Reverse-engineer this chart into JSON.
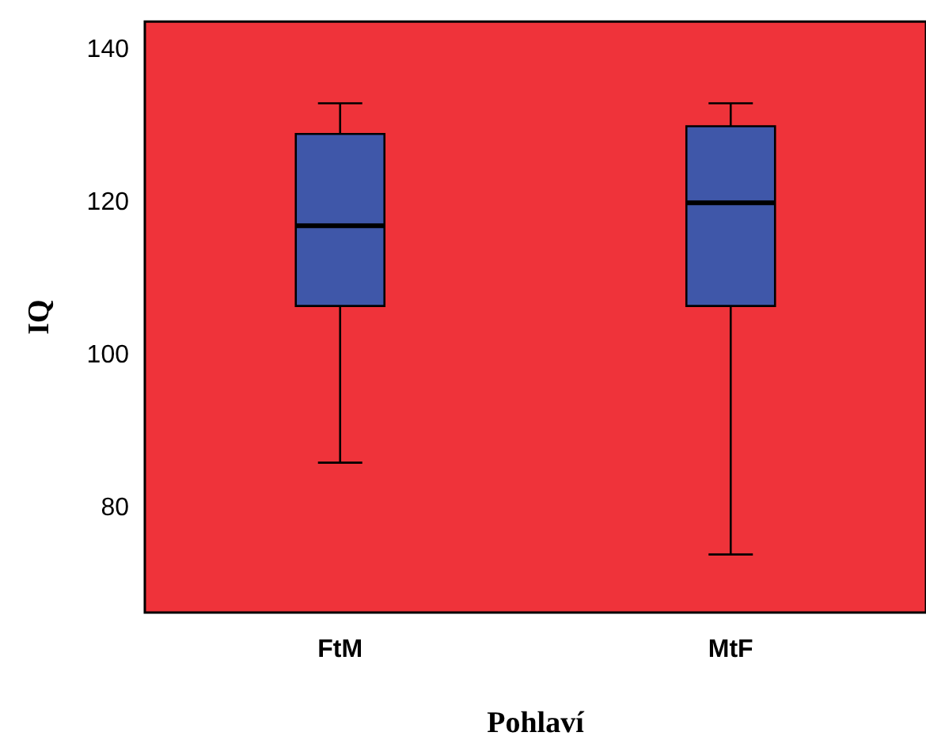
{
  "chart_data": {
    "type": "box",
    "xlabel": "Pohlaví",
    "ylabel": "IQ",
    "categories": [
      "FtM",
      "MtF"
    ],
    "color": "#3f57a9",
    "boxes": [
      {
        "low": 86,
        "q1": 106.5,
        "median": 117,
        "q3": 129,
        "high": 133
      },
      {
        "low": 74,
        "q1": 106.5,
        "median": 120,
        "q3": 130,
        "high": 133
      }
    ],
    "ylim": [
      66.4,
      143.7
    ],
    "yticks": [
      80,
      100,
      120,
      140
    ],
    "grid": false,
    "legend": false
  }
}
